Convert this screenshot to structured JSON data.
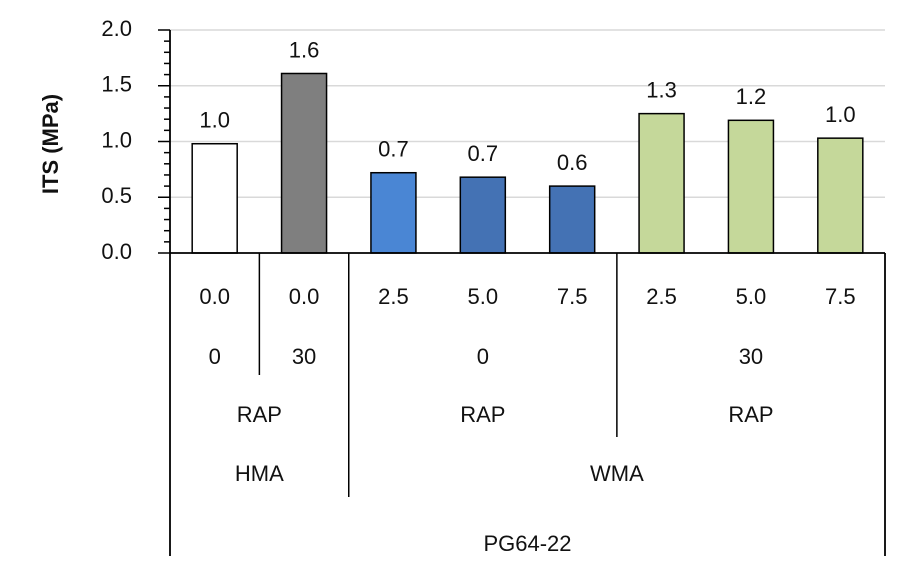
{
  "chart_data": {
    "type": "bar",
    "title": "",
    "xlabel": "",
    "ylabel": "ITS (MPa)",
    "ylim": [
      0,
      2.0
    ],
    "y_ticks": [
      "0.0",
      "0.5",
      "1.0",
      "1.5",
      "2.0"
    ],
    "y_tick_values": [
      0,
      0.5,
      1.0,
      1.5,
      2.0
    ],
    "grid": true,
    "legend": "none",
    "bars": [
      {
        "value": 0.98,
        "label": "1.0",
        "color": "#ffffff"
      },
      {
        "value": 1.61,
        "label": "1.6",
        "color": "#7f7f7f"
      },
      {
        "value": 0.72,
        "label": "0.7",
        "color": "#4a86d4"
      },
      {
        "value": 0.68,
        "label": "0.7",
        "color": "#4472b4"
      },
      {
        "value": 0.6,
        "label": "0.6",
        "color": "#4472b4"
      },
      {
        "value": 1.25,
        "label": "1.3",
        "color": "#c5d89a"
      },
      {
        "value": 1.19,
        "label": "1.2",
        "color": "#c5d89a"
      },
      {
        "value": 1.03,
        "label": "1.0",
        "color": "#c5d89a"
      }
    ],
    "category_levels": {
      "level1": [
        "0.0",
        "0.0",
        "2.5",
        "5.0",
        "7.5",
        "2.5",
        "5.0",
        "7.5"
      ],
      "level2": [
        {
          "label": "0",
          "span": 1
        },
        {
          "label": "30",
          "span": 1
        },
        {
          "label": "0",
          "span": 3
        },
        {
          "label": "30",
          "span": 3
        }
      ],
      "level3": [
        {
          "label": "RAP",
          "span": 2
        },
        {
          "label": "RAP",
          "span": 3
        },
        {
          "label": "RAP",
          "span": 3
        }
      ],
      "level4": [
        {
          "label": "HMA",
          "span": 2
        },
        {
          "label": "WMA",
          "span": 6
        }
      ],
      "level5": [
        {
          "label": "PG64-22",
          "span": 8
        }
      ]
    }
  },
  "colors": {
    "axis": "#000000",
    "grid": "#d9d9d9",
    "bar_outline": "#000000"
  }
}
